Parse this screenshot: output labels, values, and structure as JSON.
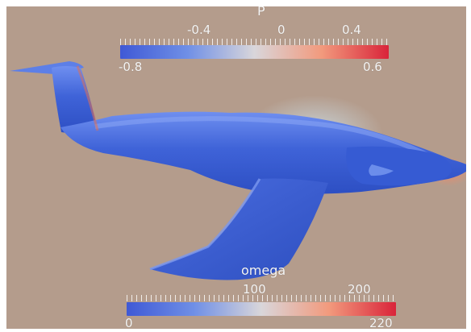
{
  "colorbars": {
    "pressure": {
      "title": "P",
      "min_label": "-0.8",
      "max_label": "0.6",
      "tick_labels": [
        "-0.4",
        "0",
        "0.4"
      ],
      "colors": [
        "#3f59d6",
        "#6f8fe6",
        "#d9d6da",
        "#f29a7d",
        "#d9243a"
      ]
    },
    "omega": {
      "title": "omega",
      "min_label": "0",
      "max_label": "220",
      "tick_labels": [
        "100",
        "200"
      ],
      "colors": [
        "#3f59d6",
        "#6f8fe6",
        "#d9d6da",
        "#f29a7d",
        "#d9243a"
      ]
    }
  },
  "scene": {
    "background": "#b49c8c",
    "aircraft_color": "#3f63d8",
    "aircraft_shadow": "#2f4fc2",
    "aircraft_highlight": "#7f9df0",
    "pressure_highlight": "#e07a5f"
  }
}
